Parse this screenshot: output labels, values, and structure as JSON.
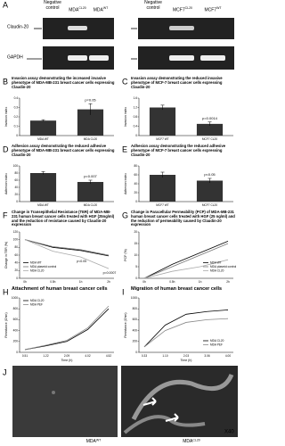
{
  "blot": {
    "panel": "A",
    "groups": [
      {
        "lanes": [
          {
            "text": "Negative control"
          },
          {
            "text": "MDA",
            "sup": "CL20"
          },
          {
            "text": "MDA",
            "sup": "WT"
          }
        ]
      },
      {
        "lanes": [
          {
            "text": "Negative control"
          },
          {
            "text": "MCF7",
            "sup": "CL20"
          },
          {
            "text": "MCF7",
            "sup": "WT"
          }
        ]
      }
    ],
    "rows": [
      "Claudin-20",
      "GAPDH"
    ]
  },
  "chart_data": [
    {
      "type": "bar",
      "panel": "B",
      "title": "Invasion assay demonstrating the increased invasive phenotype of MDA-MB-231 breast cancer cells expressing Claudin-20",
      "ylabel": "Invasion index",
      "categories": [
        "MDA WT",
        "MDA CL20"
      ],
      "values": [
        0.16,
        0.28
      ],
      "errors": [
        0.01,
        0.06
      ],
      "color": "#333333",
      "ylim": [
        0,
        0.4
      ],
      "yticks": [
        0,
        0.1,
        0.2,
        0.3,
        0.4
      ],
      "annotations": [
        "p=0.05"
      ]
    },
    {
      "type": "bar",
      "panel": "C",
      "title": "Invasion assay demonstrating the reduced invasive phenotype of MCF-7 breast cancer cells expressing Claudin-20",
      "ylabel": "Invasion index",
      "categories": [
        "MCF7 WT",
        "MCF7 CL20"
      ],
      "values": [
        1.2,
        0.5
      ],
      "errors": [
        0.1,
        0.08
      ],
      "color": "#333333",
      "ylim": [
        0,
        1.6
      ],
      "yticks": [
        0,
        0.4,
        0.8,
        1.2,
        1.6
      ],
      "annotations": [
        "p=0.0014"
      ]
    },
    {
      "type": "bar",
      "panel": "D",
      "title": "Adhesion assay demonstrating the reduced adhesive phenotype of MDA-MB-231 breast cancer cells expressing Claudin-20",
      "ylabel": "Adhesion index",
      "categories": [
        "MDA WT",
        "MDA CL20"
      ],
      "values": [
        80,
        55
      ],
      "errors": [
        4,
        5
      ],
      "color": "#333333",
      "ylim": [
        0,
        100
      ],
      "yticks": [
        0,
        20,
        40,
        60,
        80,
        100
      ],
      "annotations": [
        "p=0.007"
      ]
    },
    {
      "type": "bar",
      "panel": "E",
      "title": "Adhesion assay demonstrating the reduced adhesive phenotype of MCF-7 breast cancer cells expressing Claudin-20",
      "ylabel": "Adhesion index",
      "categories": [
        "MCF7 WT",
        "MCF7 CL20"
      ],
      "values": [
        60,
        47
      ],
      "errors": [
        6,
        5
      ],
      "color": "#333333",
      "ylim": [
        0,
        80
      ],
      "yticks": [
        0,
        20,
        40,
        60,
        80
      ],
      "annotations": [
        "p<0.05"
      ]
    },
    {
      "type": "line",
      "panel": "F",
      "title": "Change in Transepithelial Resistance (TER) of MDA-MB-231 human breast cancer cells treated with HGF (25ng/ml) and the reduction of resistance caused by Claudin-20 expression",
      "ylabel": "Change in TER (%)",
      "categories": [
        "0h",
        "0.5h",
        "1h",
        "2h"
      ],
      "series": [
        {
          "name": "MDA WT",
          "color": "#000000",
          "values": [
            100,
            80,
            72,
            58
          ]
        },
        {
          "name": "MDA plasmid control",
          "color": "#777777",
          "values": [
            100,
            82,
            74,
            60
          ]
        },
        {
          "name": "MDA CL20",
          "color": "#aaaaaa",
          "values": [
            100,
            70,
            55,
            25
          ]
        }
      ],
      "ylim": [
        0,
        120
      ],
      "yticks": [
        0,
        20,
        40,
        60,
        80,
        100,
        120
      ],
      "legend": "lower left",
      "annotations": [
        "p<0.05",
        "p=0.0007"
      ]
    },
    {
      "type": "line",
      "panel": "G",
      "title": "Change in Paracellular Permeability (PCP) of MDA-MB-231 human breast cancer cells treated with HGF (25 ng/ml) and the reduction of permeability caused by Claudin-20 expression",
      "ylabel": "PCP (%)",
      "categories": [
        "0h",
        "0.5h",
        "1h",
        "2h"
      ],
      "series": [
        {
          "name": "MDA WT",
          "color": "#000000",
          "values": [
            0,
            6,
            11,
            16
          ]
        },
        {
          "name": "MDA plasmid control",
          "color": "#777777",
          "values": [
            0,
            5,
            10,
            15
          ]
        },
        {
          "name": "MDA CL20",
          "color": "#aaaaaa",
          "values": [
            0,
            3,
            5,
            8
          ]
        }
      ],
      "ylim": [
        0,
        20
      ],
      "yticks": [
        0,
        5,
        10,
        15,
        20
      ],
      "legend": "lower right",
      "annotations": []
    },
    {
      "type": "line",
      "panel": "H",
      "title": "Attachment of human breast cancer cells",
      "ylabel": "Resistance (Ohm)",
      "xlabel": "Time (h)",
      "categories": [
        "0.51",
        "1.22",
        "2.09",
        "4.02",
        "4.52"
      ],
      "series": [
        {
          "name": "MDA CL20",
          "color": "#000000",
          "values": [
            50,
            120,
            200,
            420,
            800
          ]
        },
        {
          "name": "MDA PEF",
          "color": "#888888",
          "values": [
            50,
            130,
            220,
            450,
            850
          ]
        }
      ],
      "ylim": [
        0,
        1000
      ],
      "yticks": [
        0,
        200,
        400,
        600,
        800,
        1000
      ],
      "legend": "upper left",
      "annotations": []
    },
    {
      "type": "line",
      "panel": "I",
      "title": "Migration of human breast cancer cells",
      "ylabel": "Resistance (Ohm)",
      "xlabel": "Time (h)",
      "categories": [
        "0.33",
        "1.10",
        "2.03",
        "3.06",
        "4.00"
      ],
      "series": [
        {
          "name": "MDA CL20",
          "color": "#000000",
          "values": [
            100,
            500,
            700,
            750,
            780
          ]
        },
        {
          "name": "MDA PEF",
          "color": "#888888",
          "values": [
            100,
            400,
            550,
            600,
            620
          ]
        }
      ],
      "ylim": [
        0,
        1000
      ],
      "yticks": [
        0,
        200,
        400,
        600,
        800,
        1000
      ],
      "legend": "lower right",
      "annotations": []
    }
  ],
  "micrographs": {
    "panel": "J",
    "images": [
      {
        "text": "MDA",
        "sup": "WT"
      },
      {
        "text": "MDA",
        "sup": "CL20",
        "mag": "X40"
      }
    ]
  }
}
